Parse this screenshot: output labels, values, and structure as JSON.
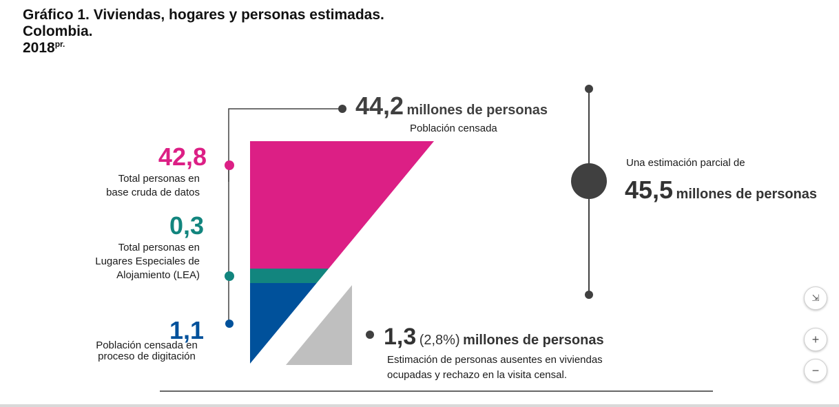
{
  "title": {
    "line1": "Gráfico 1. Viviendas, hogares y personas estimadas.",
    "line2": "Colombia.",
    "line3": "2018",
    "line3_sup": "pr."
  },
  "chart_data": {
    "type": "funnel",
    "title": "Gráfico 1. Viviendas, hogares y personas estimadas. Colombia. 2018pr.",
    "unit": "millones de personas",
    "total_censada": {
      "value": "44,2",
      "unit": "millones de personas",
      "label": "Población censada"
    },
    "segments": [
      {
        "name": "Total personas en base cruda de datos",
        "value": 42.8,
        "label": "42,8",
        "desc": [
          "Total personas en",
          "base cruda de datos"
        ],
        "color": "#dc1f85"
      },
      {
        "name": "Total personas en Lugares Especiales de Alojamiento (LEA)",
        "value": 0.3,
        "label": "0,3",
        "desc": [
          "Total personas en",
          "Lugares Especiales de",
          "Alojamiento  (LEA)"
        ],
        "color": "#12857e"
      },
      {
        "name": "Población censada en proceso de digitación",
        "value": 1.1,
        "label": "1,1",
        "desc": [
          "Población censada en",
          "proceso de digitación"
        ],
        "color": "#00519b"
      }
    ],
    "ausentes": {
      "value": "1,3",
      "pct": "(2,8%)",
      "unit": "millones de personas",
      "desc": [
        "Estimación de personas ausentes en viviendas",
        "ocupadas y rechazo en la visita censal."
      ],
      "color": "#bfbfbf"
    },
    "estimacion": {
      "intro": "Una estimación parcial de",
      "value": "45,5",
      "unit": "millones de personas"
    },
    "colors": {
      "line": "#404040",
      "dot": "#404040"
    }
  },
  "controls": {
    "collapse_icon": "⇲",
    "zoom_in": "+",
    "zoom_out": "−"
  }
}
